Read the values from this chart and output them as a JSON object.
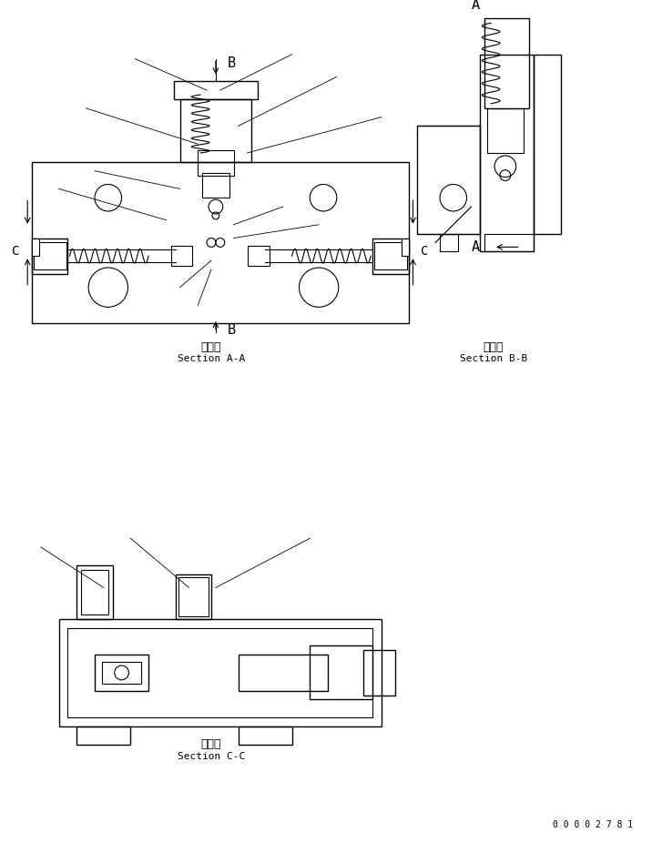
{
  "bg_color": "#ffffff",
  "line_color": "#000000",
  "fig_width": 7.16,
  "fig_height": 9.26,
  "dpi": 100,
  "section_aa_label": "断面\nSection A-A",
  "section_bb_label": "断面\nSection B-B",
  "section_cc_label": "断面\nSection C-C",
  "part_number": "0 0 0 0 2 7 8 1"
}
